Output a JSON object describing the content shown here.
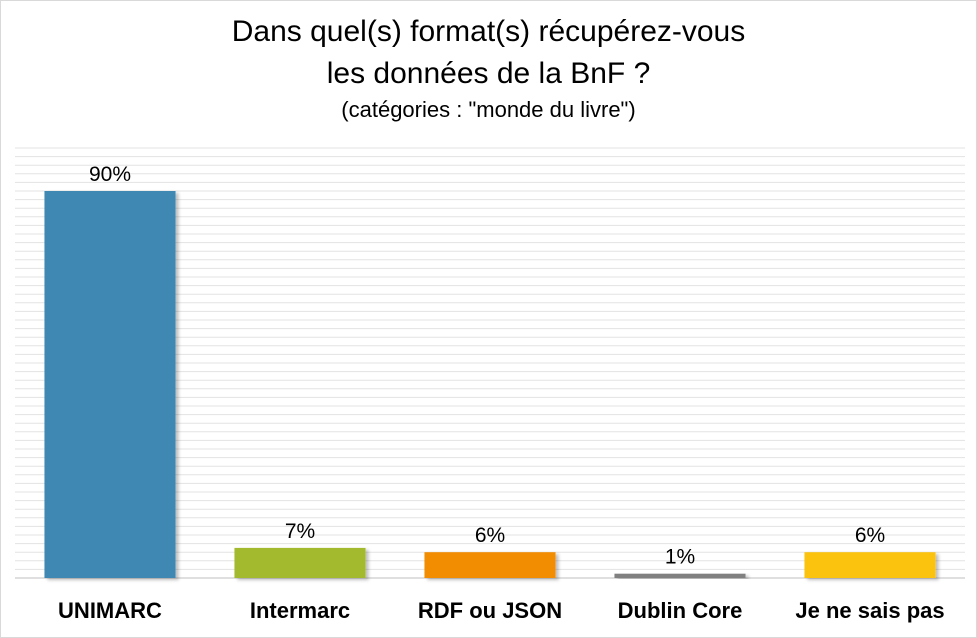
{
  "chart_data": {
    "type": "bar",
    "title_lines": [
      "Dans quel(s) format(s) récupérez-vous",
      "les données de la BnF ?"
    ],
    "subtitle": "(catégories : \"monde du livre\")",
    "categories": [
      "UNIMARC",
      "Intermarc",
      "RDF ou JSON",
      "Dublin Core",
      "Je ne sais pas"
    ],
    "values": [
      90,
      7,
      6,
      1,
      6
    ],
    "data_labels": [
      "90%",
      "7%",
      "6%",
      "1%",
      "6%"
    ],
    "colors": [
      "#4088b4",
      "#a3b92f",
      "#f28c00",
      "#808080",
      "#fbc30d"
    ],
    "ylim": [
      0,
      100
    ],
    "grid": true,
    "legend": false,
    "xlabel": "",
    "ylabel": ""
  }
}
